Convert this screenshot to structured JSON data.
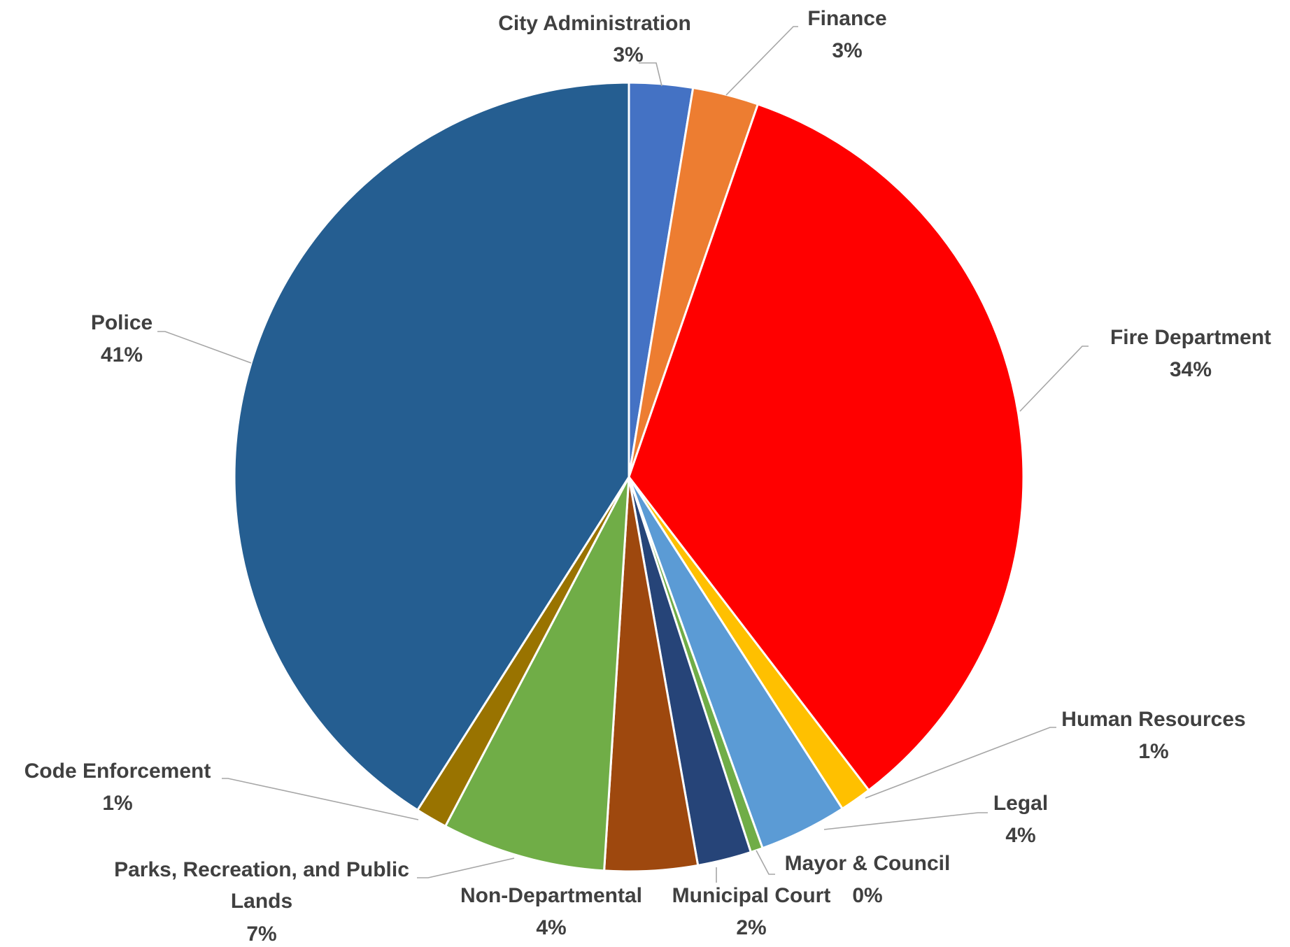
{
  "chart_data": {
    "type": "pie",
    "title": "",
    "slices": [
      {
        "label": "City Administration",
        "value": 2.6,
        "pct_label": "3%",
        "color": "#4472c4"
      },
      {
        "label": "Finance",
        "value": 2.7,
        "pct_label": "3%",
        "color": "#ed7d31"
      },
      {
        "label": "Fire Department",
        "value": 34.3,
        "pct_label": "34%",
        "color": "#ff0000"
      },
      {
        "label": "Human Resources",
        "value": 1.3,
        "pct_label": "1%",
        "color": "#ffc000"
      },
      {
        "label": "Legal",
        "value": 3.6,
        "pct_label": "4%",
        "color": "#5b9bd5"
      },
      {
        "label": "Mayor & Council",
        "value": 0.5,
        "pct_label": "0%",
        "color": "#70ad47"
      },
      {
        "label": "Municipal Court",
        "value": 2.2,
        "pct_label": "2%",
        "color": "#264478"
      },
      {
        "label": "Non-Departmental",
        "value": 3.8,
        "pct_label": "4%",
        "color": "#9e480e"
      },
      {
        "label": "Parks, Recreation, and Public Lands",
        "value": 6.7,
        "pct_label": "7%",
        "color": "#70ad47"
      },
      {
        "label": "Code Enforcement",
        "value": 1.3,
        "pct_label": "1%",
        "color": "#997300"
      },
      {
        "label": "Police",
        "value": 41.0,
        "pct_label": "41%",
        "color": "#255e91"
      }
    ]
  }
}
